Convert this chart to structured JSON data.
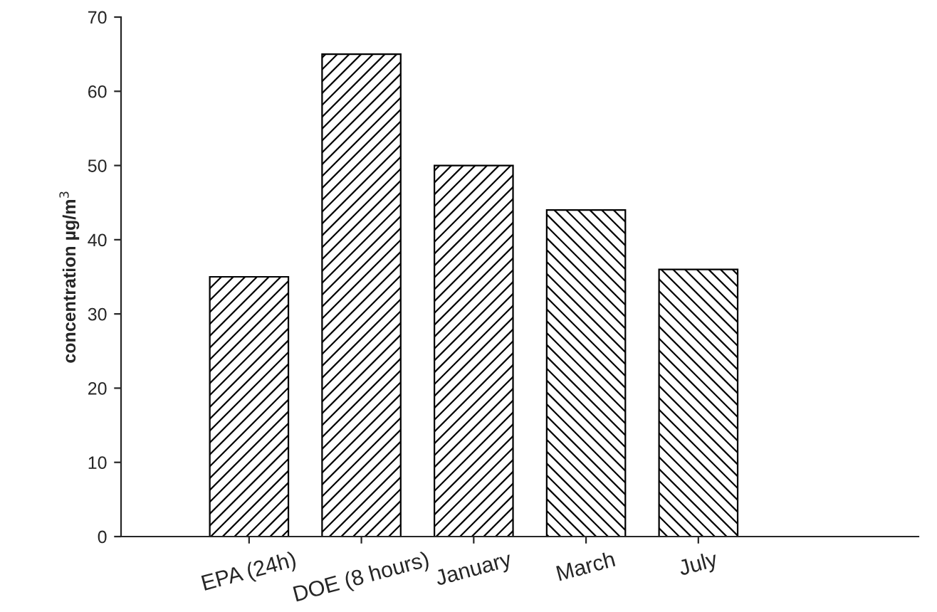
{
  "chart_data": {
    "type": "bar",
    "ylabel": "concentration µg/m$^{3}$",
    "categories": [
      "EPA (24h)",
      "DOE (8 hours)",
      "January",
      "March",
      "July"
    ],
    "values": [
      35,
      65,
      50,
      44,
      36
    ],
    "color": "#000000",
    "ylim": [
      0,
      70
    ],
    "yticks": [
      0,
      10,
      20,
      30,
      40,
      50,
      60,
      70
    ],
    "grid": false,
    "legend": false
  }
}
